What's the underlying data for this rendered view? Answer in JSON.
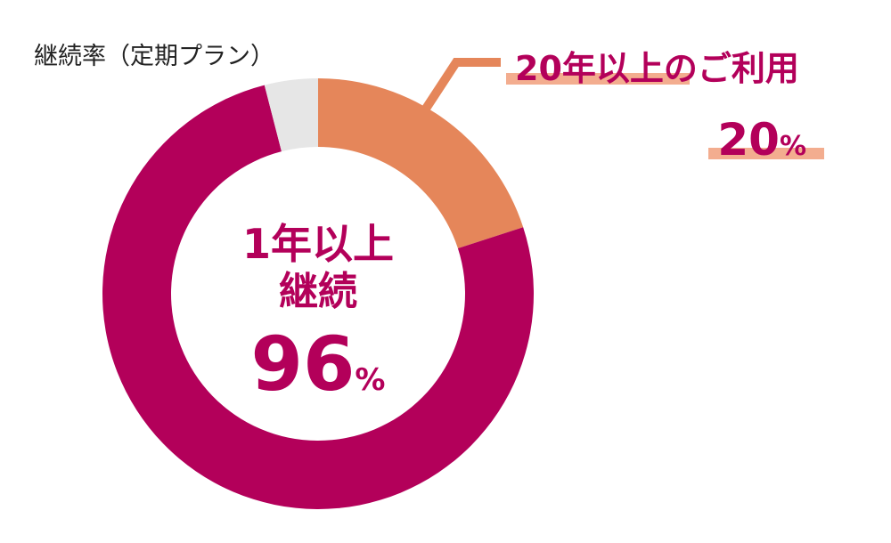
{
  "chart_data": {
    "type": "donut",
    "title": "継続率（定期プラン）",
    "categories": [
      "20年以上のご利用",
      null,
      null
    ],
    "values": [
      20,
      76,
      4
    ],
    "colors": [
      "#e5865a",
      "#b3005a",
      "#e6e6e6"
    ],
    "unit": "%",
    "center": {
      "line1": "1年以上",
      "line2": "継続",
      "value": 96
    }
  }
}
